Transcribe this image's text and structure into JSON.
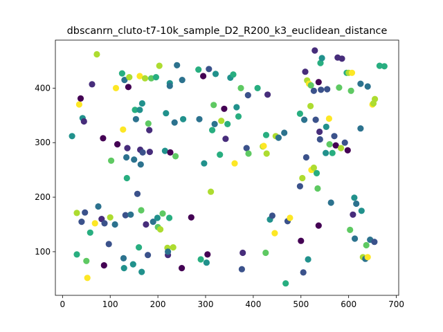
{
  "chart_data": {
    "type": "scatter",
    "title": "dbscanrn_cluto-t7-10k_sample_D2_R200_k3_euclidean_distance",
    "xlabel": "",
    "ylabel": "",
    "xlim": [
      -15,
      705
    ],
    "ylim": [
      20,
      488
    ],
    "xticks": [
      0,
      100,
      200,
      300,
      400,
      500,
      600,
      700
    ],
    "yticks": [
      100,
      200,
      300,
      400
    ],
    "grid": false,
    "colormap": "viridis",
    "palette": [
      "#440154",
      "#472d7b",
      "#3b528b",
      "#2c728e",
      "#21918c",
      "#28ae80",
      "#5ec962",
      "#addc30",
      "#fde725"
    ],
    "points": [
      [
        20,
        312,
        4
      ],
      [
        30,
        95,
        5
      ],
      [
        30,
        171,
        7
      ],
      [
        35,
        370,
        8
      ],
      [
        38,
        381,
        0
      ],
      [
        40,
        155,
        2
      ],
      [
        42,
        345,
        4
      ],
      [
        45,
        339,
        1
      ],
      [
        47,
        172,
        2
      ],
      [
        50,
        83,
        6
      ],
      [
        52,
        52,
        8
      ],
      [
        58,
        135,
        5
      ],
      [
        62,
        407,
        1
      ],
      [
        68,
        152,
        8
      ],
      [
        72,
        462,
        7
      ],
      [
        75,
        183,
        3
      ],
      [
        82,
        160,
        1
      ],
      [
        85,
        308,
        0
      ],
      [
        87,
        75,
        0
      ],
      [
        88,
        152,
        2
      ],
      [
        97,
        114,
        2
      ],
      [
        100,
        163,
        7
      ],
      [
        102,
        267,
        6
      ],
      [
        110,
        150,
        3
      ],
      [
        112,
        400,
        8
      ],
      [
        115,
        297,
        0
      ],
      [
        125,
        427,
        5
      ],
      [
        127,
        324,
        8
      ],
      [
        128,
        88,
        3
      ],
      [
        129,
        70,
        4
      ],
      [
        130,
        415,
        3
      ],
      [
        132,
        167,
        2
      ],
      [
        134,
        273,
        3
      ],
      [
        135,
        235,
        5
      ],
      [
        136,
        290,
        1
      ],
      [
        138,
        402,
        0
      ],
      [
        140,
        420,
        7
      ],
      [
        143,
        168,
        3
      ],
      [
        148,
        77,
        4
      ],
      [
        150,
        269,
        3
      ],
      [
        152,
        360,
        5
      ],
      [
        154,
        343,
        3
      ],
      [
        157,
        206,
        2
      ],
      [
        160,
        108,
        5
      ],
      [
        162,
        360,
        4
      ],
      [
        162,
        422,
        8
      ],
      [
        163,
        287,
        1
      ],
      [
        164,
        260,
        3
      ],
      [
        165,
        176,
        6
      ],
      [
        166,
        63,
        4
      ],
      [
        167,
        372,
        4
      ],
      [
        168,
        282,
        2
      ],
      [
        173,
        418,
        7
      ],
      [
        175,
        150,
        1
      ],
      [
        179,
        94,
        2
      ],
      [
        180,
        335,
        6
      ],
      [
        182,
        323,
        1
      ],
      [
        183,
        283,
        1
      ],
      [
        186,
        418,
        6
      ],
      [
        190,
        155,
        3
      ],
      [
        196,
        420,
        5
      ],
      [
        199,
        162,
        4
      ],
      [
        200,
        145,
        6
      ],
      [
        203,
        441,
        7
      ],
      [
        205,
        141,
        7
      ],
      [
        210,
        170,
        6
      ],
      [
        215,
        285,
        4
      ],
      [
        217,
        354,
        4
      ],
      [
        220,
        107,
        7
      ],
      [
        221,
        94,
        1
      ],
      [
        221,
        100,
        3
      ],
      [
        224,
        162,
        5
      ],
      [
        225,
        409,
        4
      ],
      [
        225,
        404,
        3
      ],
      [
        226,
        282,
        0
      ],
      [
        232,
        108,
        7
      ],
      [
        235,
        337,
        3
      ],
      [
        237,
        275,
        6
      ],
      [
        240,
        442,
        3
      ],
      [
        250,
        70,
        0
      ],
      [
        251,
        415,
        3
      ],
      [
        253,
        343,
        4
      ],
      [
        270,
        163,
        0
      ],
      [
        285,
        434,
        5
      ],
      [
        287,
        343,
        3
      ],
      [
        290,
        86,
        5
      ],
      [
        295,
        422,
        0
      ],
      [
        297,
        262,
        4
      ],
      [
        302,
        80,
        4
      ],
      [
        304,
        95,
        0
      ],
      [
        307,
        435,
        2
      ],
      [
        311,
        210,
        7
      ],
      [
        314,
        323,
        5
      ],
      [
        317,
        369,
        6
      ],
      [
        319,
        334,
        3
      ],
      [
        321,
        426,
        4
      ],
      [
        330,
        278,
        5
      ],
      [
        333,
        340,
        7
      ],
      [
        339,
        362,
        0
      ],
      [
        342,
        307,
        1
      ],
      [
        346,
        334,
        5
      ],
      [
        352,
        419,
        4
      ],
      [
        358,
        425,
        5
      ],
      [
        361,
        262,
        8
      ],
      [
        365,
        365,
        4
      ],
      [
        369,
        348,
        5
      ],
      [
        374,
        400,
        6
      ],
      [
        376,
        68,
        2
      ],
      [
        378,
        98,
        1
      ],
      [
        386,
        290,
        2
      ],
      [
        389,
        387,
        2
      ],
      [
        390,
        280,
        6
      ],
      [
        409,
        400,
        5
      ],
      [
        420,
        293,
        7
      ],
      [
        422,
        294,
        8
      ],
      [
        426,
        98,
        6
      ],
      [
        427,
        314,
        5
      ],
      [
        428,
        280,
        7
      ],
      [
        430,
        388,
        1
      ],
      [
        435,
        159,
        4
      ],
      [
        440,
        166,
        2
      ],
      [
        445,
        134,
        8
      ],
      [
        447,
        312,
        7
      ],
      [
        453,
        309,
        3
      ],
      [
        465,
        318,
        3
      ],
      [
        468,
        42,
        5
      ],
      [
        472,
        156,
        2
      ],
      [
        477,
        162,
        8
      ],
      [
        498,
        220,
        2
      ],
      [
        498,
        353,
        5
      ],
      [
        500,
        120,
        0
      ],
      [
        503,
        235,
        7
      ],
      [
        505,
        62,
        2
      ],
      [
        507,
        342,
        3
      ],
      [
        509,
        430,
        1
      ],
      [
        511,
        273,
        2
      ],
      [
        513,
        414,
        7
      ],
      [
        515,
        86,
        4
      ],
      [
        517,
        408,
        8
      ],
      [
        520,
        367,
        7
      ],
      [
        521,
        405,
        6
      ],
      [
        522,
        250,
        8
      ],
      [
        527,
        254,
        7
      ],
      [
        527,
        395,
        2
      ],
      [
        529,
        469,
        1
      ],
      [
        531,
        342,
        2
      ],
      [
        533,
        244,
        5
      ],
      [
        535,
        216,
        6
      ],
      [
        537,
        411,
        0
      ],
      [
        537,
        148,
        0
      ],
      [
        539,
        320,
        1
      ],
      [
        540,
        306,
        2
      ],
      [
        541,
        446,
        5
      ],
      [
        542,
        397,
        2
      ],
      [
        544,
        455,
        4
      ],
      [
        552,
        281,
        4
      ],
      [
        553,
        329,
        4
      ],
      [
        555,
        398,
        2
      ],
      [
        559,
        344,
        8
      ],
      [
        560,
        297,
        6
      ],
      [
        563,
        190,
        3
      ],
      [
        566,
        281,
        5
      ],
      [
        570,
        312,
        2
      ],
      [
        573,
        295,
        0
      ],
      [
        577,
        456,
        1
      ],
      [
        580,
        401,
        6
      ],
      [
        584,
        290,
        7
      ],
      [
        586,
        454,
        1
      ],
      [
        592,
        300,
        2
      ],
      [
        596,
        428,
        5
      ],
      [
        598,
        286,
        0
      ],
      [
        600,
        428,
        7
      ],
      [
        603,
        140,
        6
      ],
      [
        605,
        395,
        6
      ],
      [
        607,
        428,
        8
      ],
      [
        609,
        168,
        1
      ],
      [
        612,
        199,
        4
      ],
      [
        613,
        124,
        3
      ],
      [
        616,
        188,
        3
      ],
      [
        625,
        326,
        3
      ],
      [
        625,
        408,
        3
      ],
      [
        627,
        175,
        4
      ],
      [
        630,
        90,
        7
      ],
      [
        635,
        87,
        3
      ],
      [
        637,
        112,
        6
      ],
      [
        640,
        90,
        8
      ],
      [
        640,
        403,
        3
      ],
      [
        645,
        122,
        3
      ],
      [
        650,
        370,
        8
      ],
      [
        652,
        372,
        7
      ],
      [
        654,
        118,
        2
      ],
      [
        655,
        380,
        7
      ],
      [
        665,
        441,
        5
      ],
      [
        675,
        440,
        5
      ]
    ]
  }
}
